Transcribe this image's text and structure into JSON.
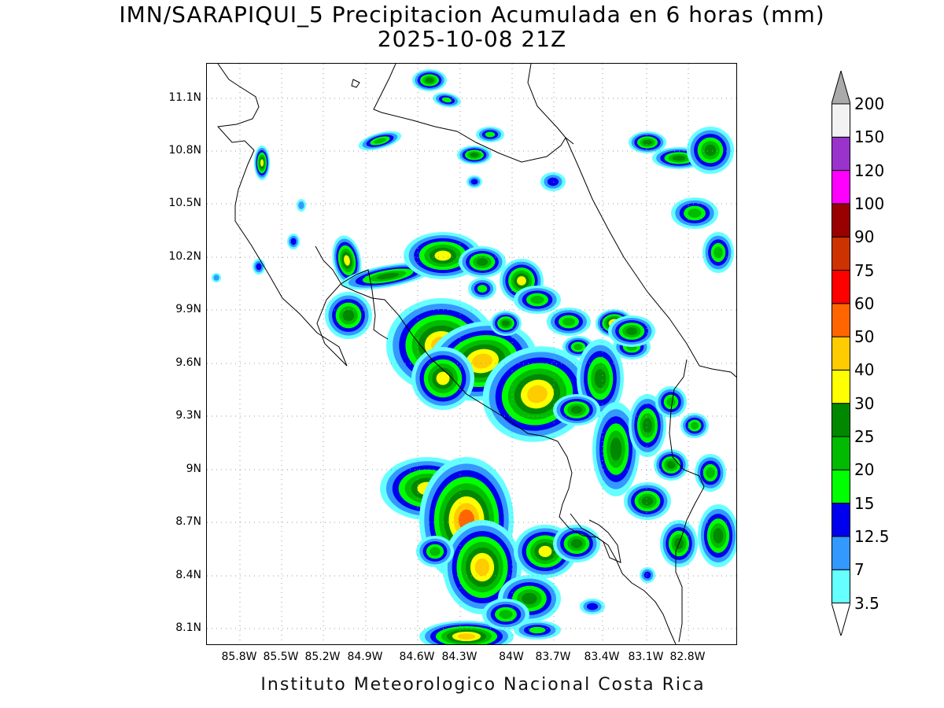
{
  "title": {
    "line1": "IMN/SARAPIQUI_5 Precipitacion Acumulada en 6 horas (mm)",
    "line2": "2025-10-08 21Z"
  },
  "footer": "Instituto Meteorologico Nacional Costa Rica",
  "map": {
    "lon_range": [
      -86.0,
      -82.55
    ],
    "lat_range": [
      8.0,
      11.3
    ],
    "lat_ticks": [
      "11.1N",
      "10.8N",
      "10.5N",
      "10.2N",
      "9.9N",
      "9.6N",
      "9.3N",
      "9N",
      "8.7N",
      "8.4N",
      "8.1N"
    ],
    "lon_ticks": [
      "85.8W",
      "85.5W",
      "85.2W",
      "84.9W",
      "84.6W",
      "84.3W",
      "84W",
      "83.7W",
      "83.4W",
      "83.1W",
      "82.8W"
    ],
    "gridlines": "dotted"
  },
  "colorbar": {
    "labels": [
      "200",
      "150",
      "120",
      "100",
      "90",
      "75",
      "60",
      "50",
      "40",
      "30",
      "25",
      "20",
      "15",
      "12.5",
      "7",
      "3.5"
    ],
    "colors_bottom_to_top": [
      "#66ffff",
      "#3399ff",
      "#0000ee",
      "#00ff00",
      "#00bb00",
      "#008800",
      "#ffff00",
      "#ffcc00",
      "#ff6600",
      "#ff0000",
      "#cc3300",
      "#990000",
      "#ff00ff",
      "#9933cc",
      "#f2f2f2"
    ],
    "over_color": "#aaaaaa",
    "under_color": "#ffffff"
  }
}
